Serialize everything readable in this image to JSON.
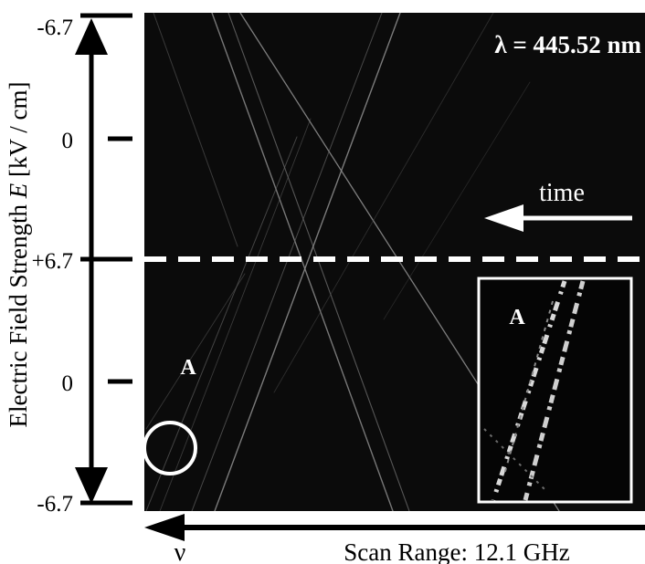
{
  "figure": {
    "ylabel_prefix": "Electric Field Strength ",
    "ylabel_var": "E",
    "ylabel_unit": " [kV / cm]",
    "ticks": [
      "-6.7",
      "0",
      "+6.7",
      "0",
      "-6.7"
    ],
    "wavelength": "λ = 445.52 nm",
    "time_label": "time",
    "marker_label": "A",
    "inset_label": "A",
    "nu_label": "ν",
    "scan_label": "Scan Range: 12.1 GHz",
    "colors": {
      "panel": "#0b0b0b",
      "foreground": "#ffffff",
      "background": "#ffffff"
    }
  }
}
